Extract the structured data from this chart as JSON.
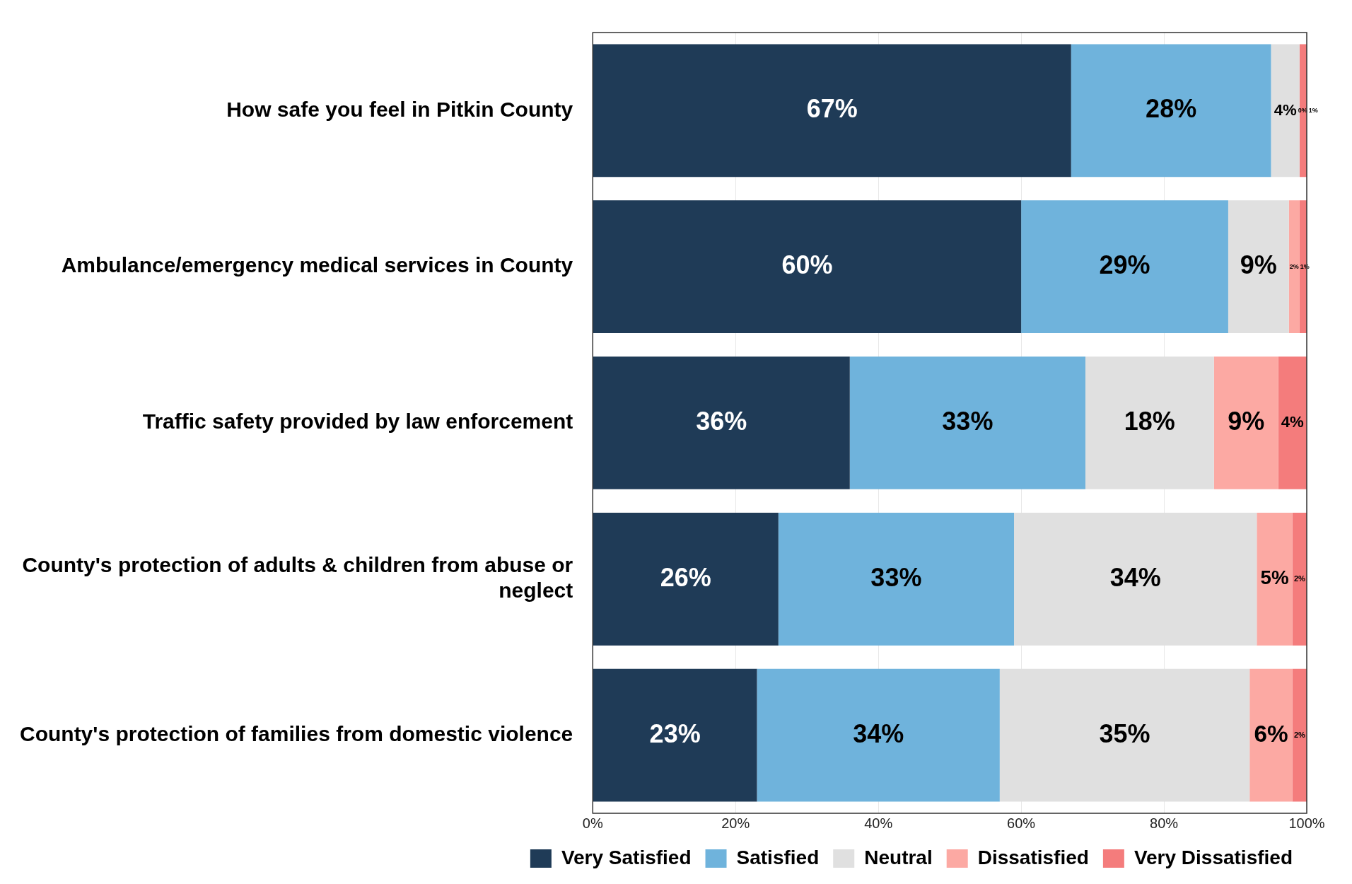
{
  "chart_data": {
    "type": "bar",
    "orientation": "horizontal",
    "stacked": true,
    "grid": "x",
    "legend": "bottom",
    "categories": [
      "How safe you feel in Pitkin County",
      "Ambulance/emergency medical services in County",
      "Traffic safety provided by law enforcement",
      "County's protection of adults & children from abuse or neglect",
      "County's protection of families from domestic violence"
    ],
    "xlim": [
      0,
      100
    ],
    "xticks": [
      {
        "value": 0,
        "label": "0%"
      },
      {
        "value": 20,
        "label": "20%"
      },
      {
        "value": 40,
        "label": "40%"
      },
      {
        "value": 60,
        "label": "60%"
      },
      {
        "value": 80,
        "label": "80%"
      },
      {
        "value": 100,
        "label": "100%"
      }
    ],
    "series": [
      {
        "name": "Very Satisfied",
        "color": "#1f3b57",
        "values": [
          67,
          60,
          36,
          26,
          23
        ],
        "value_labels": [
          "67%",
          "60%",
          "36%",
          "26%",
          "23%"
        ]
      },
      {
        "name": "Satisfied",
        "color": "#6fb3dc",
        "values": [
          28,
          29,
          33,
          33,
          34
        ],
        "value_labels": [
          "28%",
          "29%",
          "33%",
          "33%",
          "34%"
        ]
      },
      {
        "name": "Neutral",
        "color": "#e0e0e0",
        "values": [
          4,
          8.5,
          18,
          34,
          35
        ],
        "value_labels": [
          "4%",
          "9%",
          "18%",
          "34%",
          "35%"
        ]
      },
      {
        "name": "Dissatisfied",
        "color": "#fca9a3",
        "values": [
          0,
          1.5,
          9,
          5,
          6
        ],
        "value_labels": [
          "0%",
          "2%",
          "9%",
          "5%",
          "6%"
        ]
      },
      {
        "name": "Very Dissatisfied",
        "color": "#f47c7c",
        "values": [
          1,
          1,
          4,
          2,
          2
        ],
        "value_labels": [
          "1%",
          "1%",
          "4%",
          "2%",
          "2%"
        ]
      }
    ]
  }
}
